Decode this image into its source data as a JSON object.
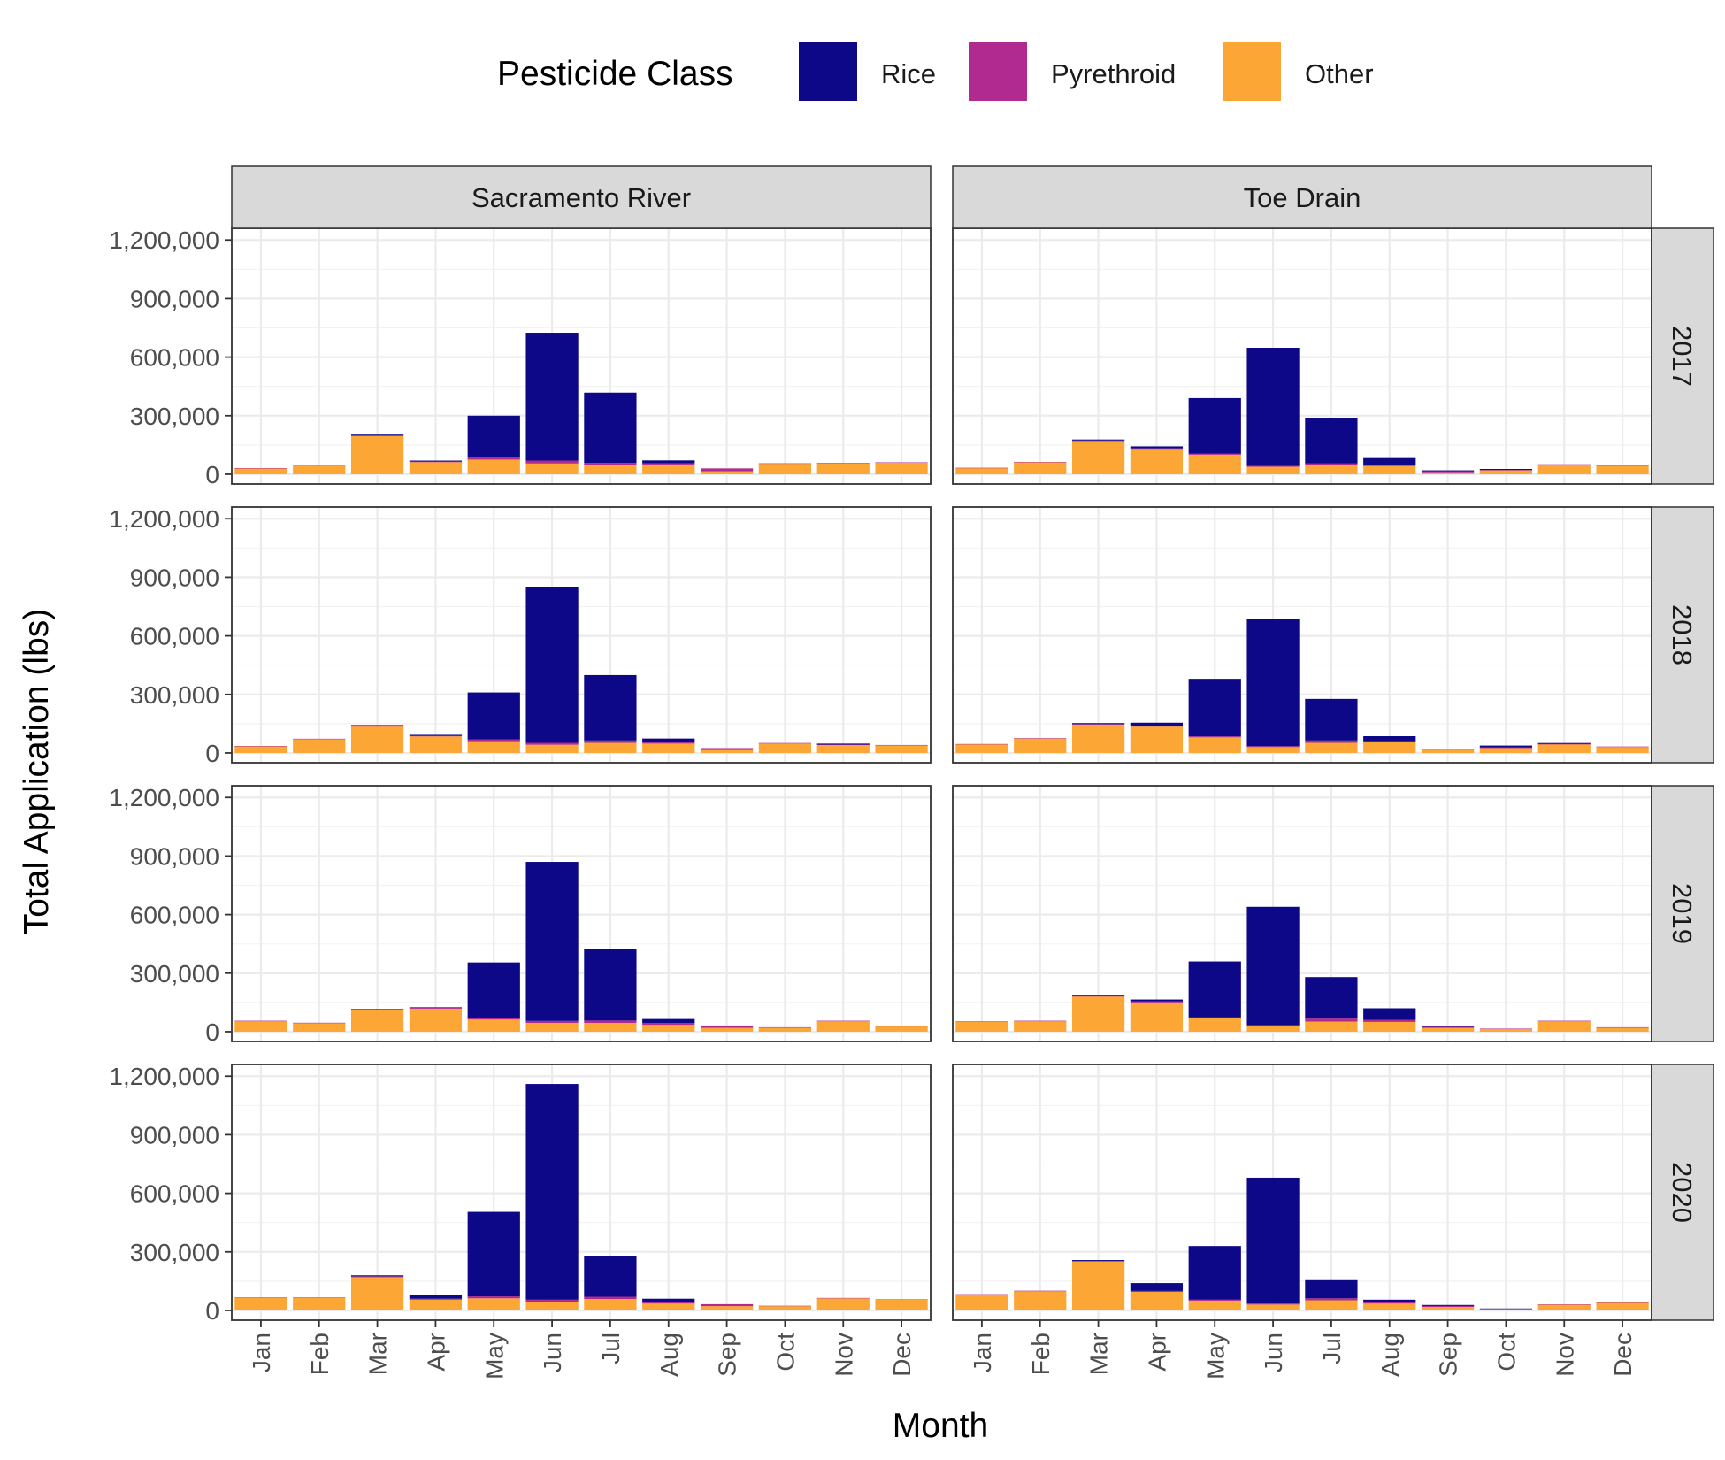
{
  "chart_data": {
    "type": "bar",
    "stacked": true,
    "xlabel": "Month",
    "ylabel": "Total Application (lbs)",
    "legend": {
      "title": "Pesticide Class",
      "placement": "top",
      "entries": [
        "Rice",
        "Pyrethroid",
        "Other"
      ]
    },
    "categories": [
      "Jan",
      "Feb",
      "Mar",
      "Apr",
      "May",
      "Jun",
      "Jul",
      "Aug",
      "Sep",
      "Oct",
      "Nov",
      "Dec"
    ],
    "y_ticks": [
      0,
      300000,
      600000,
      900000,
      1200000
    ],
    "y_tick_labels": [
      "0",
      "300,000",
      "600,000",
      "900,000",
      "1,200,000"
    ],
    "ylim": [
      -50000,
      1260000
    ],
    "grid": true,
    "colors": {
      "Rice": "#0d0887",
      "Pyrethroid": "#b12a90",
      "Other": "#fca636"
    },
    "columns": [
      "Sacramento River",
      "Toe Drain"
    ],
    "rows": [
      "2017",
      "2018",
      "2019",
      "2020"
    ],
    "panels": [
      {
        "column": "Sacramento River",
        "row": "2017",
        "series": [
          {
            "name": "Other",
            "values": [
              30000,
              42000,
              195000,
              62000,
              75000,
              55000,
              48000,
              50000,
              15000,
              55000,
              57000,
              60000
            ]
          },
          {
            "name": "Pyrethroid",
            "values": [
              1500,
              1500,
              3000,
              3000,
              10000,
              15000,
              10000,
              6000,
              15000,
              1000,
              1000,
              1000
            ]
          },
          {
            "name": "Rice",
            "values": [
              0,
              0,
              5000,
              5000,
              215000,
              655000,
              360000,
              15000,
              0,
              0,
              0,
              0
            ]
          }
        ]
      },
      {
        "column": "Toe Drain",
        "row": "2017",
        "series": [
          {
            "name": "Other",
            "values": [
              32000,
              62000,
              170000,
              130000,
              100000,
              38000,
              45000,
              42000,
              10000,
              20000,
              50000,
              45000
            ]
          },
          {
            "name": "Pyrethroid",
            "values": [
              1000,
              1000,
              3000,
              3000,
              5000,
              5000,
              10000,
              6000,
              5000,
              2000,
              1000,
              1000
            ]
          },
          {
            "name": "Rice",
            "values": [
              0,
              0,
              5000,
              10000,
              285000,
              605000,
              235000,
              35000,
              5000,
              5000,
              0,
              0
            ]
          }
        ]
      },
      {
        "column": "Sacramento River",
        "row": "2018",
        "series": [
          {
            "name": "Other",
            "values": [
              35000,
              72000,
              135000,
              85000,
              60000,
              42000,
              52000,
              48000,
              15000,
              50000,
              42000,
              40000
            ]
          },
          {
            "name": "Pyrethroid",
            "values": [
              1000,
              1000,
              3000,
              3000,
              10000,
              10000,
              12000,
              6000,
              10000,
              1000,
              1000,
              1000
            ]
          },
          {
            "name": "Rice",
            "values": [
              0,
              0,
              5000,
              5000,
              240000,
              800000,
              335000,
              20000,
              0,
              0,
              5000,
              0
            ]
          }
        ]
      },
      {
        "column": "Toe Drain",
        "row": "2018",
        "series": [
          {
            "name": "Other",
            "values": [
              45000,
              75000,
              145000,
              135000,
              80000,
              30000,
              52000,
              55000,
              15000,
              25000,
              45000,
              32000
            ]
          },
          {
            "name": "Pyrethroid",
            "values": [
              1000,
              1000,
              3000,
              5000,
              5000,
              5000,
              12000,
              6000,
              1000,
              3000,
              1000,
              1000
            ]
          },
          {
            "name": "Rice",
            "values": [
              0,
              0,
              5000,
              15000,
              295000,
              650000,
              213000,
              25000,
              0,
              10000,
              5000,
              0
            ]
          }
        ]
      },
      {
        "column": "Sacramento River",
        "row": "2019",
        "series": [
          {
            "name": "Other",
            "values": [
              55000,
              45000,
              110000,
              118000,
              62000,
              45000,
              45000,
              35000,
              20000,
              22000,
              55000,
              28000
            ]
          },
          {
            "name": "Pyrethroid",
            "values": [
              1000,
              1000,
              3000,
              4000,
              10000,
              10000,
              12000,
              10000,
              12000,
              1000,
              1000,
              1000
            ]
          },
          {
            "name": "Rice",
            "values": [
              0,
              0,
              3000,
              3000,
              283000,
              815000,
              368000,
              20000,
              0,
              0,
              0,
              0
            ]
          }
        ]
      },
      {
        "column": "Toe Drain",
        "row": "2019",
        "series": [
          {
            "name": "Other",
            "values": [
              52000,
              55000,
              180000,
              150000,
              68000,
              28000,
              52000,
              50000,
              20000,
              15000,
              55000,
              22000
            ]
          },
          {
            "name": "Pyrethroid",
            "values": [
              1000,
              1000,
              3000,
              5000,
              5000,
              5000,
              15000,
              10000,
              5000,
              1000,
              1000,
              1000
            ]
          },
          {
            "name": "Rice",
            "values": [
              0,
              0,
              5000,
              10000,
              287000,
              607000,
              213000,
              60000,
              5000,
              0,
              0,
              0
            ]
          }
        ]
      },
      {
        "column": "Sacramento River",
        "row": "2020",
        "series": [
          {
            "name": "Other",
            "values": [
              65000,
              65000,
              170000,
              55000,
              62000,
              45000,
              58000,
              35000,
              22000,
              22000,
              62000,
              55000
            ]
          },
          {
            "name": "Pyrethroid",
            "values": [
              2000,
              2000,
              5000,
              5000,
              10000,
              10000,
              12000,
              10000,
              10000,
              2000,
              2000,
              2000
            ]
          },
          {
            "name": "Rice",
            "values": [
              0,
              0,
              5000,
              20000,
              433000,
              1105000,
              210000,
              15000,
              0,
              0,
              0,
              0
            ]
          }
        ]
      },
      {
        "column": "Toe Drain",
        "row": "2020",
        "series": [
          {
            "name": "Other",
            "values": [
              82000,
              100000,
              250000,
              95000,
              50000,
              30000,
              52000,
              35000,
              18000,
              8000,
              30000,
              40000
            ]
          },
          {
            "name": "Pyrethroid",
            "values": [
              1000,
              1000,
              3000,
              5000,
              5000,
              5000,
              10000,
              6000,
              5000,
              1000,
              1000,
              1000
            ]
          },
          {
            "name": "Rice",
            "values": [
              0,
              0,
              5000,
              40000,
              275000,
              645000,
              93000,
              14000,
              5000,
              1000,
              0,
              0
            ]
          }
        ]
      }
    ]
  }
}
